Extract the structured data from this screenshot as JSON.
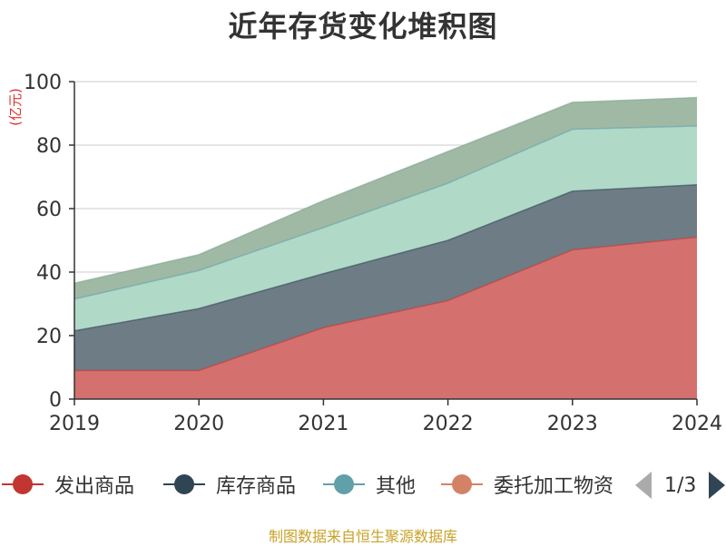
{
  "title": "近年存货变化堆积图",
  "source": "制图数据来自恒生聚源数据库",
  "legend": {
    "items": [
      {
        "label": "发出商品",
        "color": "#c23531"
      },
      {
        "label": "库存商品",
        "color": "#2f4554"
      },
      {
        "label": "其他",
        "color": "#61a0a8"
      },
      {
        "label": "委托加工物资",
        "color": "#d48265"
      }
    ],
    "page_indicator": "1/3"
  },
  "chart_data": {
    "type": "area",
    "stacked": true,
    "x": [
      "2019",
      "2020",
      "2021",
      "2022",
      "2023",
      "2024"
    ],
    "ylabel": "(亿元)",
    "ylim": [
      0,
      100
    ],
    "yticks": [
      0,
      20,
      40,
      60,
      80,
      100
    ],
    "grid": true,
    "series": [
      {
        "name": "发出商品",
        "color": "#c23531",
        "fill": "#d4716f",
        "values": [
          9,
          9,
          22.5,
          31,
          47,
          51
        ]
      },
      {
        "name": "库存商品",
        "color": "#2f4554",
        "fill": "#6e7c86",
        "values": [
          12.5,
          19.5,
          17,
          19,
          18.5,
          16.5
        ]
      },
      {
        "name": "其他",
        "color": "#61a0a8",
        "fill": "#b1d9c8",
        "values": [
          10,
          12,
          14.5,
          18,
          19.5,
          18.5
        ]
      },
      {
        "name": "",
        "color": "#7fa58c",
        "fill": "#a0b9a5",
        "values": [
          5,
          5,
          8.5,
          10,
          8.5,
          9
        ]
      }
    ]
  }
}
